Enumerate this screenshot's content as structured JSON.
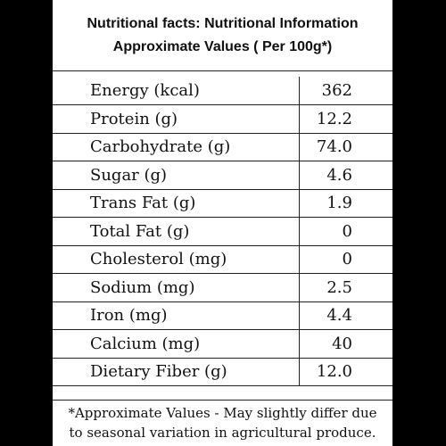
{
  "header": {
    "line1": "Nutritional facts: Nutritional Information",
    "line2": "Approximate Values ( Per 100g*)"
  },
  "rows": [
    {
      "name": "Energy (kcal)",
      "value": "362"
    },
    {
      "name": "Protein (g)",
      "value": "12.2"
    },
    {
      "name": "Carbohydrate (g)",
      "value": "74.0"
    },
    {
      "name": "Sugar (g)",
      "value": "4.6"
    },
    {
      "name": "Trans Fat (g)",
      "value": "1.9"
    },
    {
      "name": "Total Fat (g)",
      "value": "0"
    },
    {
      "name": "Cholesterol (mg)",
      "value": "0"
    },
    {
      "name": "Sodium (mg)",
      "value": "2.5"
    },
    {
      "name": "Iron (mg)",
      "value": "4.4"
    },
    {
      "name": "Calcium (mg)",
      "value": "40"
    },
    {
      "name": "Dietary Fiber (g)",
      "value": "12.0"
    }
  ],
  "footnote": {
    "line1": "*Approximate Values - May slightly differ due",
    "line2": "to seasonal variation in agricultural produce."
  }
}
